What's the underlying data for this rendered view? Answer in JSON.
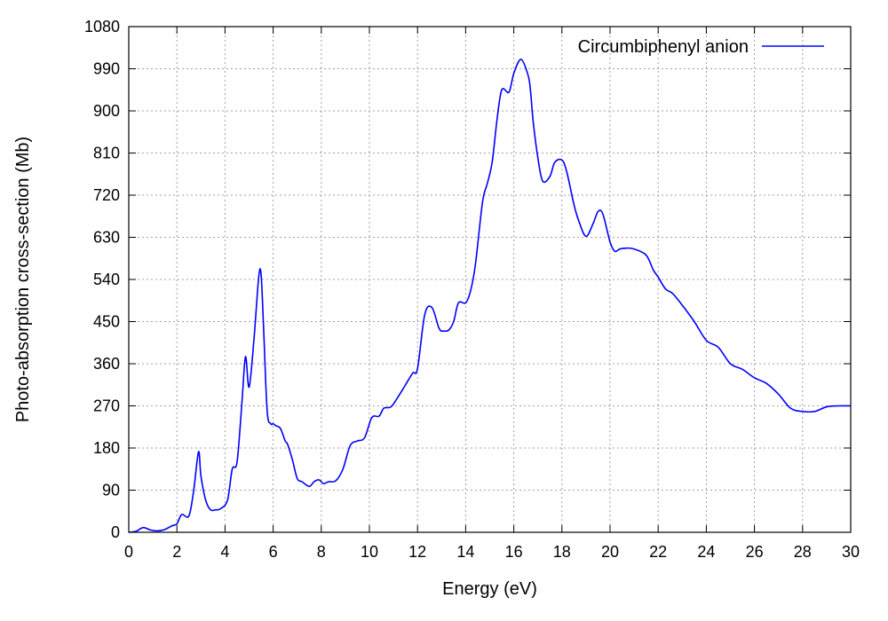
{
  "chart_data": {
    "type": "line",
    "xlabel": "Energy (eV)",
    "ylabel": "Photo-absorption cross-section (Mb)",
    "xlim": [
      0,
      30
    ],
    "ylim": [
      0,
      1080
    ],
    "x_ticks": [
      0,
      2,
      4,
      6,
      8,
      10,
      12,
      14,
      16,
      18,
      20,
      22,
      24,
      26,
      28,
      30
    ],
    "y_ticks": [
      0,
      90,
      180,
      270,
      360,
      450,
      540,
      630,
      720,
      810,
      900,
      990,
      1080
    ],
    "x_tick_labels": [
      "0",
      "2",
      "4",
      "6",
      "8",
      "10",
      "12",
      "14",
      "16",
      "18",
      "20",
      "22",
      "24",
      "26",
      "28",
      "30"
    ],
    "y_tick_labels": [
      "0",
      "90",
      "180",
      "270",
      "360",
      "450",
      "540",
      "630",
      "720",
      "810",
      "900",
      "990",
      "1080"
    ],
    "grid": true,
    "legend": {
      "position": "top-right"
    },
    "series": [
      {
        "name": "Circumbiphenyl anion",
        "color": "#0000ff",
        "x": [
          0,
          0.3,
          0.6,
          0.9,
          1.2,
          1.5,
          1.8,
          2.0,
          2.2,
          2.5,
          2.7,
          2.9,
          3.0,
          3.2,
          3.4,
          3.6,
          3.8,
          4.1,
          4.3,
          4.5,
          4.7,
          4.85,
          5.0,
          5.2,
          5.4,
          5.5,
          5.6,
          5.75,
          5.9,
          6.0,
          6.1,
          6.3,
          6.5,
          6.6,
          6.8,
          7.0,
          7.2,
          7.5,
          7.7,
          7.9,
          8.1,
          8.3,
          8.6,
          8.9,
          9.2,
          9.5,
          9.8,
          10.1,
          10.4,
          10.6,
          10.9,
          11.2,
          11.5,
          11.8,
          12.0,
          12.3,
          12.6,
          12.9,
          13.1,
          13.3,
          13.5,
          13.7,
          14.0,
          14.2,
          14.4,
          14.7,
          14.9,
          15.1,
          15.3,
          15.5,
          15.8,
          16.0,
          16.3,
          16.6,
          16.7,
          16.8,
          17.0,
          17.2,
          17.5,
          17.7,
          18.0,
          18.2,
          18.5,
          18.7,
          19.0,
          19.3,
          19.5,
          19.7,
          20.0,
          20.2,
          20.4,
          20.7,
          21.0,
          21.5,
          21.8,
          22.0,
          22.3,
          22.6,
          23.0,
          23.5,
          24.0,
          24.5,
          25.0,
          25.5,
          26.0,
          26.5,
          27.0,
          27.5,
          28.0,
          28.5,
          29.0,
          29.5,
          30.0
        ],
        "values": [
          0,
          2,
          10,
          5,
          3,
          6,
          14,
          18,
          38,
          35,
          90,
          172,
          120,
          68,
          48,
          48,
          50,
          68,
          135,
          150,
          275,
          375,
          310,
          410,
          545,
          550,
          440,
          260,
          232,
          232,
          228,
          222,
          195,
          188,
          155,
          115,
          108,
          98,
          108,
          112,
          104,
          108,
          110,
          135,
          185,
          195,
          202,
          245,
          248,
          265,
          268,
          290,
          315,
          340,
          350,
          465,
          480,
          435,
          430,
          432,
          450,
          490,
          490,
          515,
          570,
          705,
          745,
          790,
          880,
          945,
          940,
          980,
          1010,
          975,
          940,
          880,
          800,
          750,
          760,
          790,
          795,
          770,
          700,
          665,
          632,
          660,
          685,
          680,
          620,
          600,
          605,
          607,
          605,
          592,
          560,
          545,
          520,
          510,
          485,
          450,
          410,
          395,
          360,
          348,
          330,
          318,
          295,
          265,
          258,
          258,
          268,
          270,
          270
        ]
      }
    ]
  }
}
